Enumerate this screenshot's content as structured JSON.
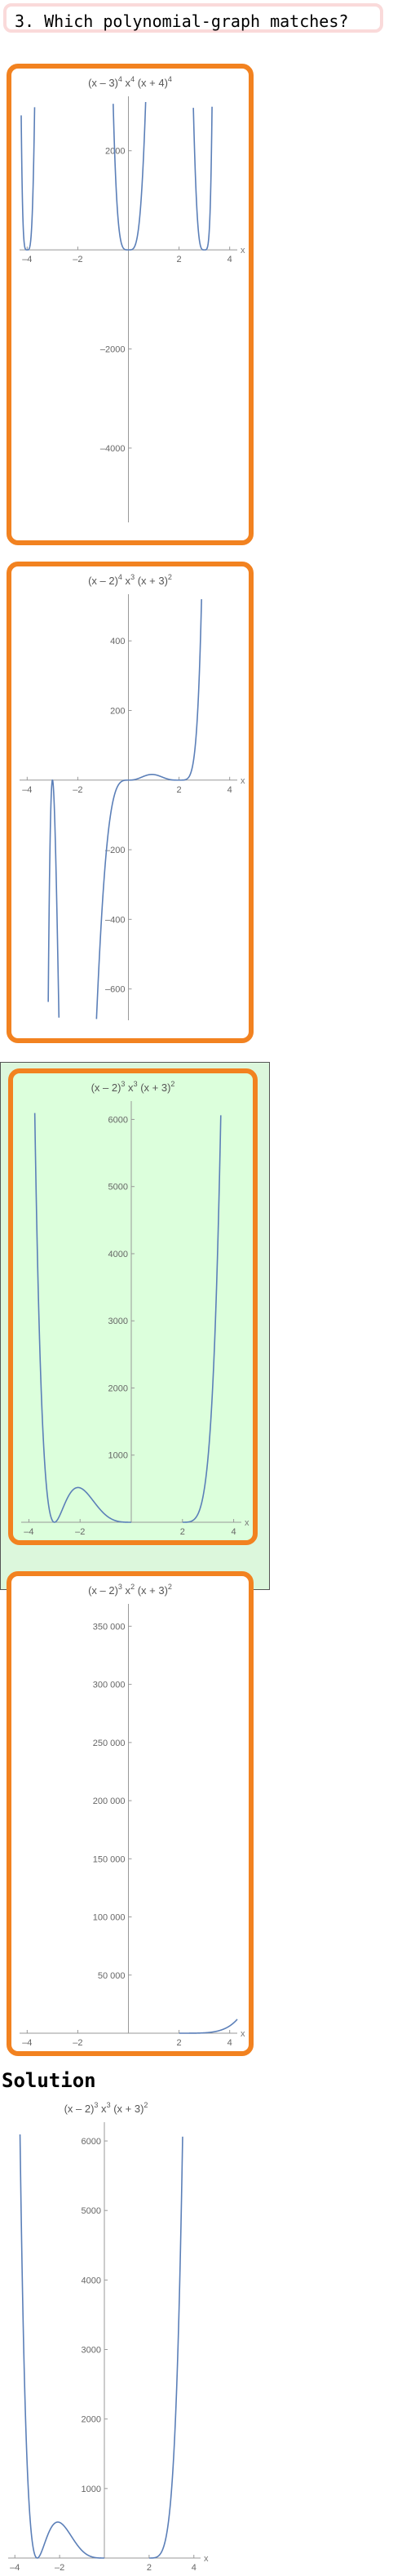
{
  "question": {
    "label": "3. Which polynomial-graph matches?"
  },
  "solution_label": "Solution",
  "colors": {
    "accent": "#f28220",
    "curve": "#5b7fb8",
    "selected_bg": "#dcffdc",
    "question_border": "#fadada"
  },
  "chart_data": [
    {
      "type": "line",
      "title_html": [
        "(x – 3)",
        "4",
        " x",
        "4",
        " (x + 4)",
        "4"
      ],
      "expr": "A",
      "xlabel": "x",
      "xlim": [
        -4.3,
        4.3
      ],
      "ylim": [
        -5500,
        3000
      ],
      "xticks": [
        -4,
        -2,
        2,
        4
      ],
      "xtick_labels": [
        "–4",
        "–2",
        "2",
        "4"
      ],
      "yticks": [
        2000,
        -2000,
        -4000
      ],
      "ytick_labels": [
        "2000",
        "–2000",
        "–4000"
      ]
    },
    {
      "type": "line",
      "title_html": [
        "(x – 2)",
        "4",
        " x",
        "3",
        " (x + 3)",
        "2"
      ],
      "expr": "B",
      "xlabel": "x",
      "xlim": [
        -4.3,
        4.3
      ],
      "ylim": [
        -690,
        520
      ],
      "xticks": [
        -4,
        -2,
        2,
        4
      ],
      "xtick_labels": [
        "–4",
        "–2",
        "2",
        "4"
      ],
      "yticks": [
        400,
        200,
        -200,
        -400,
        -600
      ],
      "ytick_labels": [
        "400",
        "200",
        "–200",
        "–400",
        "–600"
      ]
    },
    {
      "type": "line",
      "title_html": [
        "(x – 2)",
        "3",
        " x",
        "3",
        " (x + 3)",
        "2"
      ],
      "expr": "C",
      "xlabel": "x",
      "xlim": [
        -4.3,
        4.3
      ],
      "ylim": [
        0,
        6200
      ],
      "xticks": [
        -4,
        -2,
        2,
        4
      ],
      "xtick_labels": [
        "–4",
        "–2",
        "2",
        "4"
      ],
      "yticks": [
        1000,
        2000,
        3000,
        4000,
        5000,
        6000
      ],
      "ytick_labels": [
        "1000",
        "2000",
        "3000",
        "4000",
        "5000",
        "6000"
      ]
    },
    {
      "type": "line",
      "title_html": [
        "(x – 2)",
        "3",
        " x",
        "2",
        " (x + 3)",
        "2"
      ],
      "expr": "D",
      "xlabel": "x",
      "xlim": [
        -4.3,
        4.3
      ],
      "ylim": [
        0,
        365000
      ],
      "xticks": [
        -4,
        -2,
        2,
        4
      ],
      "xtick_labels": [
        "–4",
        "–2",
        "2",
        "4"
      ],
      "yticks": [
        50000,
        100000,
        150000,
        200000,
        250000,
        300000,
        350000
      ],
      "ytick_labels": [
        "50 000",
        "100 000",
        "150 000",
        "200 000",
        "250 000",
        "300 000",
        "350 000"
      ]
    },
    {
      "type": "line",
      "title_html": [
        "(x – 2)",
        "3",
        " x",
        "3",
        " (x + 3)",
        "2"
      ],
      "expr": "C",
      "xlabel": "x",
      "xlim": [
        -4.3,
        4.3
      ],
      "ylim": [
        0,
        6200
      ],
      "xticks": [
        -4,
        -2,
        2,
        4
      ],
      "xtick_labels": [
        "–4",
        "–2",
        "2",
        "4"
      ],
      "yticks": [
        1000,
        2000,
        3000,
        4000,
        5000,
        6000
      ],
      "ytick_labels": [
        "1000",
        "2000",
        "3000",
        "4000",
        "5000",
        "6000"
      ]
    }
  ]
}
